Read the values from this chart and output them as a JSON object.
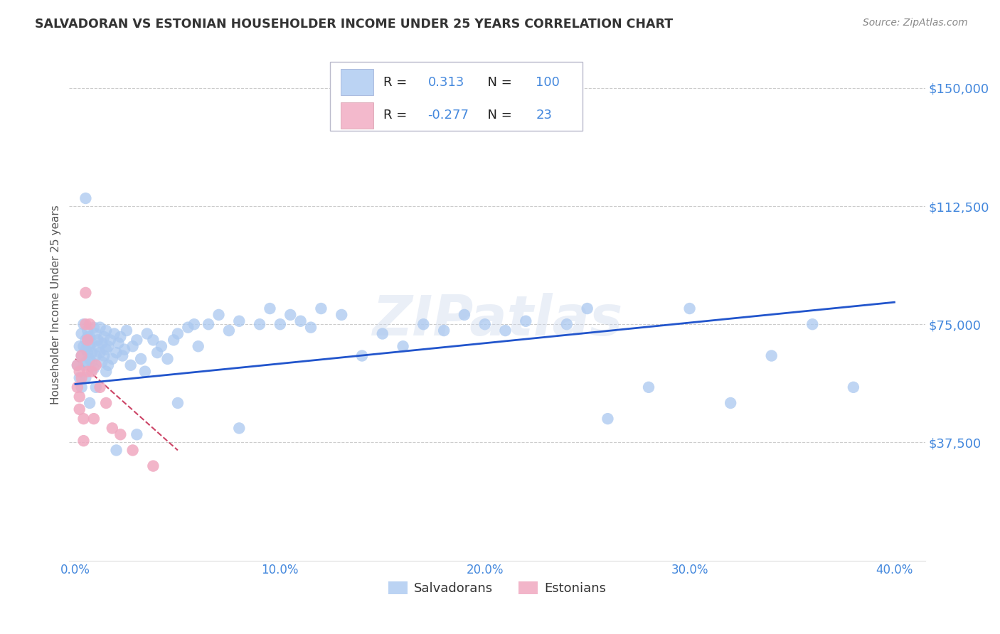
{
  "title": "SALVADORAN VS ESTONIAN HOUSEHOLDER INCOME UNDER 25 YEARS CORRELATION CHART",
  "source": "Source: ZipAtlas.com",
  "ylabel": "Householder Income Under 25 years",
  "xlabel_ticks": [
    "0.0%",
    "10.0%",
    "20.0%",
    "30.0%",
    "40.0%"
  ],
  "xlabel_vals": [
    0.0,
    0.1,
    0.2,
    0.3,
    0.4
  ],
  "ytick_labels": [
    "$37,500",
    "$75,000",
    "$112,500",
    "$150,000"
  ],
  "ytick_vals": [
    37500,
    75000,
    112500,
    150000
  ],
  "ylim": [
    0,
    162500
  ],
  "xlim": [
    -0.003,
    0.415
  ],
  "watermark": "ZIPatlas",
  "legend_blue_r": "0.313",
  "legend_blue_n": "100",
  "legend_pink_r": "-0.277",
  "legend_pink_n": "23",
  "blue_color": "#aac8f0",
  "blue_line_color": "#2255cc",
  "pink_color": "#f0a8c0",
  "pink_line_color": "#cc4466",
  "grid_color": "#cccccc",
  "title_color": "#333333",
  "axis_label_color": "#4488dd",
  "salvadorans_x": [
    0.001,
    0.002,
    0.002,
    0.003,
    0.003,
    0.003,
    0.004,
    0.004,
    0.004,
    0.005,
    0.005,
    0.005,
    0.005,
    0.006,
    0.006,
    0.006,
    0.007,
    0.007,
    0.007,
    0.008,
    0.008,
    0.008,
    0.009,
    0.009,
    0.01,
    0.01,
    0.011,
    0.011,
    0.012,
    0.012,
    0.013,
    0.013,
    0.014,
    0.014,
    0.015,
    0.015,
    0.016,
    0.016,
    0.017,
    0.018,
    0.019,
    0.02,
    0.021,
    0.022,
    0.023,
    0.024,
    0.025,
    0.027,
    0.028,
    0.03,
    0.032,
    0.034,
    0.035,
    0.038,
    0.04,
    0.042,
    0.045,
    0.048,
    0.05,
    0.055,
    0.058,
    0.06,
    0.065,
    0.07,
    0.075,
    0.08,
    0.09,
    0.095,
    0.1,
    0.105,
    0.11,
    0.115,
    0.12,
    0.13,
    0.14,
    0.15,
    0.16,
    0.17,
    0.18,
    0.19,
    0.2,
    0.21,
    0.22,
    0.24,
    0.25,
    0.26,
    0.28,
    0.3,
    0.32,
    0.34,
    0.36,
    0.38,
    0.005,
    0.007,
    0.01,
    0.015,
    0.02,
    0.03,
    0.05,
    0.08
  ],
  "salvadorans_y": [
    62000,
    68000,
    58000,
    72000,
    65000,
    55000,
    75000,
    62000,
    68000,
    70000,
    67000,
    63000,
    58000,
    71000,
    66000,
    73000,
    68000,
    64000,
    71000,
    66000,
    69000,
    63000,
    74000,
    61000,
    65000,
    72000,
    68000,
    70000,
    66000,
    74000,
    63000,
    69000,
    71000,
    65000,
    67000,
    73000,
    62000,
    68000,
    70000,
    64000,
    72000,
    66000,
    69000,
    71000,
    65000,
    67000,
    73000,
    62000,
    68000,
    70000,
    64000,
    60000,
    72000,
    70000,
    66000,
    68000,
    64000,
    70000,
    72000,
    74000,
    75000,
    68000,
    75000,
    78000,
    73000,
    76000,
    75000,
    80000,
    75000,
    78000,
    76000,
    74000,
    80000,
    78000,
    65000,
    72000,
    68000,
    75000,
    73000,
    78000,
    75000,
    73000,
    76000,
    75000,
    80000,
    45000,
    55000,
    80000,
    50000,
    65000,
    75000,
    55000,
    115000,
    50000,
    55000,
    60000,
    35000,
    40000,
    50000,
    42000
  ],
  "estonians_x": [
    0.001,
    0.001,
    0.002,
    0.002,
    0.002,
    0.003,
    0.003,
    0.004,
    0.004,
    0.005,
    0.005,
    0.006,
    0.006,
    0.007,
    0.008,
    0.009,
    0.01,
    0.012,
    0.015,
    0.018,
    0.022,
    0.028,
    0.038
  ],
  "estonians_y": [
    62000,
    55000,
    60000,
    52000,
    48000,
    65000,
    58000,
    45000,
    38000,
    85000,
    75000,
    70000,
    60000,
    75000,
    60000,
    45000,
    62000,
    55000,
    50000,
    42000,
    40000,
    35000,
    30000
  ],
  "blue_trendline_x": [
    0.0,
    0.4
  ],
  "blue_trendline_y": [
    56000,
    82000
  ],
  "pink_trendline_x": [
    0.0,
    0.05
  ],
  "pink_trendline_y": [
    64000,
    35000
  ]
}
